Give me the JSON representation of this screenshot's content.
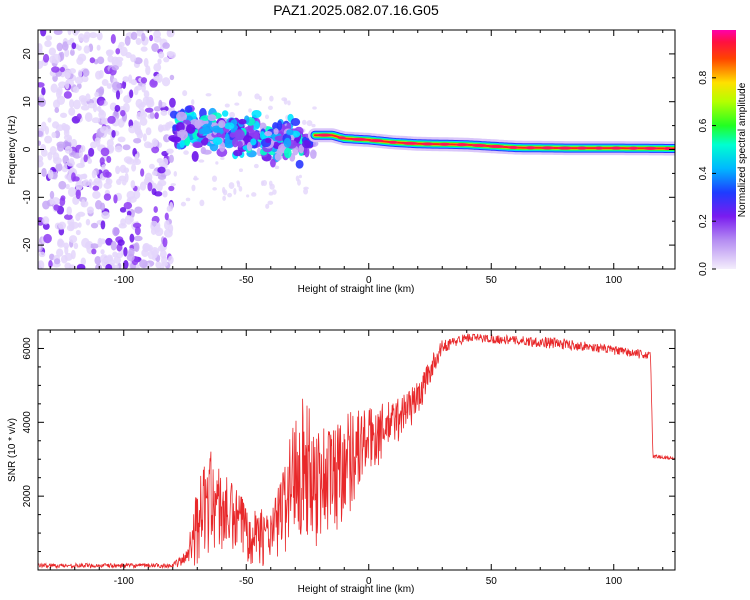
{
  "title": "PAZ1.2025.082.07.16.G05",
  "colors": {
    "snr_line": "#e8282a",
    "axes": "#000000",
    "background": "#ffffff"
  },
  "colorbar": {
    "label": "Normalized spectral amplitude",
    "ticks": [
      0.0,
      0.2,
      0.4,
      0.6,
      0.8
    ],
    "tick_labels": [
      "0.0",
      "0.2",
      "0.4",
      "0.6",
      "0.8"
    ],
    "range": [
      0,
      1
    ],
    "colormap": "rainbow (lavender-purple-blue-cyan-green-yellow-red-magenta)"
  },
  "chart_data": [
    {
      "type": "heatmap",
      "name": "spectrogram",
      "xlabel": "Height of straight line (km)",
      "ylabel": "Frequency (Hz)",
      "xlim": [
        -135,
        125
      ],
      "ylim": [
        -25,
        25
      ],
      "xticks": [
        -100,
        -50,
        0,
        50,
        100
      ],
      "xtick_labels": [
        "-100",
        "-50",
        "0",
        "50",
        "100"
      ],
      "yticks": [
        -20,
        -10,
        0,
        10,
        20
      ],
      "ytick_labels": [
        "-20",
        "-10",
        "0",
        "10",
        "20"
      ],
      "regions": [
        {
          "description": "diffuse noise",
          "x_range": [
            -135,
            -80
          ],
          "freq_range": [
            -25,
            25
          ],
          "amplitude": "low"
        },
        {
          "description": "scattered signal",
          "x_range": [
            -80,
            -22
          ],
          "freq_range": [
            -3,
            9
          ],
          "amplitude": "low-medium"
        },
        {
          "description": "coherent trace",
          "x_range": [
            -22,
            125
          ],
          "amplitude": "high"
        }
      ],
      "trace_path": [
        {
          "x": -80,
          "y": 6
        },
        {
          "x": -60,
          "y": 4
        },
        {
          "x": -40,
          "y": 3.5
        },
        {
          "x": -22,
          "y": 3
        },
        {
          "x": -15,
          "y": 3
        },
        {
          "x": -10,
          "y": 2.3
        },
        {
          "x": 0,
          "y": 2
        },
        {
          "x": 10,
          "y": 1.5
        },
        {
          "x": 20,
          "y": 1.2
        },
        {
          "x": 40,
          "y": 1
        },
        {
          "x": 60,
          "y": 0.4
        },
        {
          "x": 80,
          "y": 0.3
        },
        {
          "x": 100,
          "y": 0.3
        },
        {
          "x": 125,
          "y": 0.2
        }
      ]
    },
    {
      "type": "line",
      "name": "snr",
      "xlabel": "Height of straight line (km)",
      "ylabel": "SNR (10 * v/v)",
      "xlim": [
        -135,
        125
      ],
      "ylim": [
        0,
        6500
      ],
      "xticks": [
        -100,
        -50,
        0,
        50,
        100
      ],
      "xtick_labels": [
        "-100",
        "-50",
        "0",
        "50",
        "100"
      ],
      "yticks": [
        2000,
        4000,
        6000
      ],
      "ytick_labels": [
        "2000",
        "4000",
        "6000"
      ],
      "envelope": [
        {
          "x": -135,
          "y": 120,
          "spread": 60
        },
        {
          "x": -80,
          "y": 120,
          "spread": 60
        },
        {
          "x": -75,
          "y": 300,
          "spread": 200
        },
        {
          "x": -70,
          "y": 1200,
          "spread": 1100
        },
        {
          "x": -65,
          "y": 1800,
          "spread": 1500
        },
        {
          "x": -60,
          "y": 1400,
          "spread": 1300
        },
        {
          "x": -50,
          "y": 1000,
          "spread": 900
        },
        {
          "x": -40,
          "y": 800,
          "spread": 700
        },
        {
          "x": -35,
          "y": 1500,
          "spread": 1300
        },
        {
          "x": -28,
          "y": 2800,
          "spread": 2200
        },
        {
          "x": -22,
          "y": 2200,
          "spread": 1800
        },
        {
          "x": -15,
          "y": 2300,
          "spread": 1700
        },
        {
          "x": -8,
          "y": 2900,
          "spread": 1500
        },
        {
          "x": 0,
          "y": 3400,
          "spread": 1000
        },
        {
          "x": 10,
          "y": 3900,
          "spread": 700
        },
        {
          "x": 20,
          "y": 4600,
          "spread": 500
        },
        {
          "x": 25,
          "y": 5400,
          "spread": 350
        },
        {
          "x": 30,
          "y": 6050,
          "spread": 180
        },
        {
          "x": 40,
          "y": 6300,
          "spread": 120
        },
        {
          "x": 60,
          "y": 6220,
          "spread": 120
        },
        {
          "x": 75,
          "y": 6150,
          "spread": 160
        },
        {
          "x": 90,
          "y": 6050,
          "spread": 120
        },
        {
          "x": 110,
          "y": 5850,
          "spread": 120
        },
        {
          "x": 115,
          "y": 5800,
          "spread": 100
        },
        {
          "x": 116,
          "y": 3080,
          "spread": 60
        },
        {
          "x": 125,
          "y": 3020,
          "spread": 50
        }
      ]
    }
  ]
}
